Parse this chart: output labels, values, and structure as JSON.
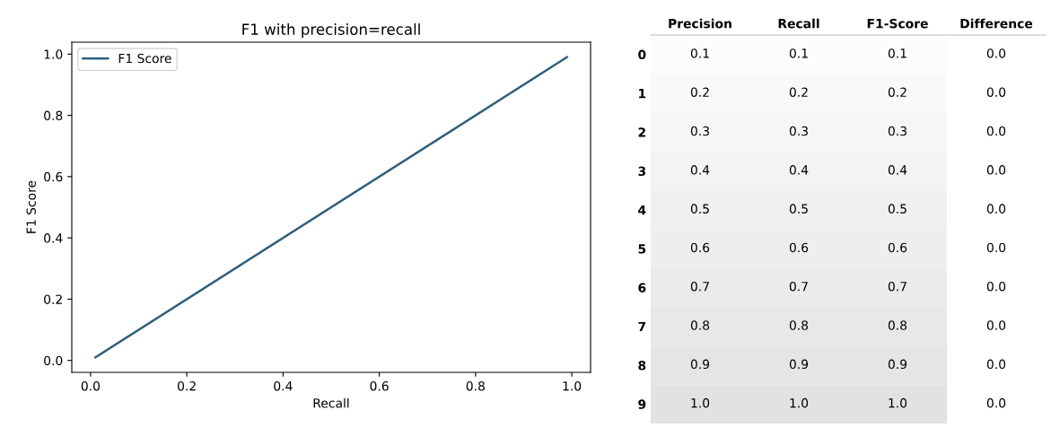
{
  "chart_data": [
    {
      "type": "line",
      "title": "F1 with precision=recall",
      "xlabel": "Recall",
      "ylabel": "F1 Score",
      "series": [
        {
          "name": "F1 Score",
          "color": "#2f5f7a",
          "x": [
            0.01,
            0.99
          ],
          "values": [
            0.01,
            0.99
          ]
        }
      ],
      "xlim": [
        -0.039,
        1.039
      ],
      "ylim": [
        -0.039,
        1.039
      ],
      "xticks": [
        {
          "value": 0,
          "label": "0.0"
        },
        0.2,
        0.4,
        0.6,
        0.8,
        {
          "value": 1,
          "label": "1.0"
        }
      ],
      "yticks": [
        {
          "value": 0,
          "label": "0.0"
        },
        0.2,
        0.4,
        0.6,
        0.8,
        {
          "value": 1,
          "label": "1.0"
        }
      ],
      "legend": "top left",
      "grid": false
    },
    {
      "type": "heatmap",
      "categories": [
        "Precision",
        "Recall",
        "F1-Score",
        "Difference"
      ],
      "y_categories": [
        "0",
        "1",
        "2",
        "3",
        "4",
        "5",
        "6",
        "7",
        "8",
        "9"
      ],
      "cells": [
        [
          0.1,
          0.1,
          0.1,
          0.0
        ],
        [
          0.2,
          0.2,
          0.2,
          0.0
        ],
        [
          0.3,
          0.3,
          0.3,
          0.0
        ],
        [
          0.4,
          0.4,
          0.4,
          0.0
        ],
        [
          0.5,
          0.5,
          0.5,
          0.0
        ],
        [
          0.6,
          0.6,
          0.6,
          0.0
        ],
        [
          0.7,
          0.7,
          0.7,
          0.0
        ],
        [
          0.8,
          0.8,
          0.8,
          0.0
        ],
        [
          0.9,
          0.9,
          0.9,
          0.0
        ],
        [
          1.0,
          1.0,
          1.0,
          0.0
        ]
      ],
      "cell_labels": [
        [
          "0.1",
          "0.1",
          "0.1",
          "0.0"
        ],
        [
          "0.2",
          "0.2",
          "0.2",
          "0.0"
        ],
        [
          "0.3",
          "0.3",
          "0.3",
          "0.0"
        ],
        [
          "0.4",
          "0.4",
          "0.4",
          "0.0"
        ],
        [
          "0.5",
          "0.5",
          "0.5",
          "0.0"
        ],
        [
          "0.6",
          "0.6",
          "0.6",
          "0.0"
        ],
        [
          "0.7",
          "0.7",
          "0.7",
          "0.0"
        ],
        [
          "0.8",
          "0.8",
          "0.8",
          "0.0"
        ],
        [
          "0.9",
          "0.9",
          "0.9",
          "0.0"
        ],
        [
          "1.0",
          "1.0",
          "1.0",
          "0.0"
        ]
      ]
    }
  ]
}
